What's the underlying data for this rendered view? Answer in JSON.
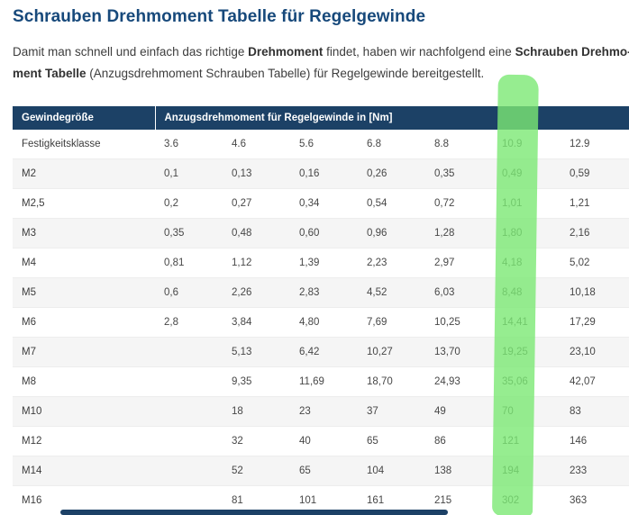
{
  "page": {
    "title": "Schrauben Drehmoment Tabelle für Regelgewinde",
    "intro_segments": [
      {
        "text": "Damit man schnell und einfach das richtige ",
        "bold": false
      },
      {
        "text": "Drehmoment",
        "bold": true
      },
      {
        "text": " findet, haben wir nachfolgend eine ",
        "bold": false
      },
      {
        "text": "Schrauben Drehmo-",
        "bold": true
      },
      {
        "break": true
      },
      {
        "text": "ment Tabelle",
        "bold": true
      },
      {
        "text": " (Anzugsdrehmoment Schrauben Tabelle) für Regelgewinde bereitgestellt.",
        "bold": false
      }
    ]
  },
  "table": {
    "header": {
      "col0": "Gewindegröße",
      "span": "Anzugsdrehmoment für Regelgewinde in [Nm]"
    },
    "subheader": [
      "Festigkeitsklasse",
      "3.6",
      "4.6",
      "5.6",
      "6.8",
      "8.8",
      "10.9",
      "12.9"
    ],
    "rows": [
      [
        "M2",
        "0,1",
        "0,13",
        "0,16",
        "0,26",
        "0,35",
        "0,49",
        "0,59"
      ],
      [
        "M2,5",
        "0,2",
        "0,27",
        "0,34",
        "0,54",
        "0,72",
        "1,01",
        "1,21"
      ],
      [
        "M3",
        "0,35",
        "0,48",
        "0,60",
        "0,96",
        "1,28",
        "1,80",
        "2,16"
      ],
      [
        "M4",
        "0,81",
        "1,12",
        "1,39",
        "2,23",
        "2,97",
        "4,18",
        "5,02"
      ],
      [
        "M5",
        "0,6",
        "2,26",
        "2,83",
        "4,52",
        "6,03",
        "8,48",
        "10,18"
      ],
      [
        "M6",
        "2,8",
        "3,84",
        "4,80",
        "7,69",
        "10,25",
        "14,41",
        "17,29"
      ],
      [
        "M7",
        "",
        "5,13",
        "6,42",
        "10,27",
        "13,70",
        "19,25",
        "23,10"
      ],
      [
        "M8",
        "",
        "9,35",
        "11,69",
        "18,70",
        "24,93",
        "35,06",
        "42,07"
      ],
      [
        "M10",
        "",
        "18",
        "23",
        "37",
        "49",
        "70",
        "83"
      ],
      [
        "M12",
        "",
        "32",
        "40",
        "65",
        "86",
        "121",
        "146"
      ],
      [
        "M14",
        "",
        "52",
        "65",
        "104",
        "138",
        "194",
        "233"
      ],
      [
        "M16",
        "",
        "81",
        "101",
        "161",
        "215",
        "302",
        "363"
      ]
    ],
    "highlighted_column": "10.9"
  },
  "colors": {
    "title_navy": "#17497b",
    "header_navy": "#1c4166",
    "highlight_green": "#7ce874",
    "stripe_gray": "#f5f5f5"
  }
}
